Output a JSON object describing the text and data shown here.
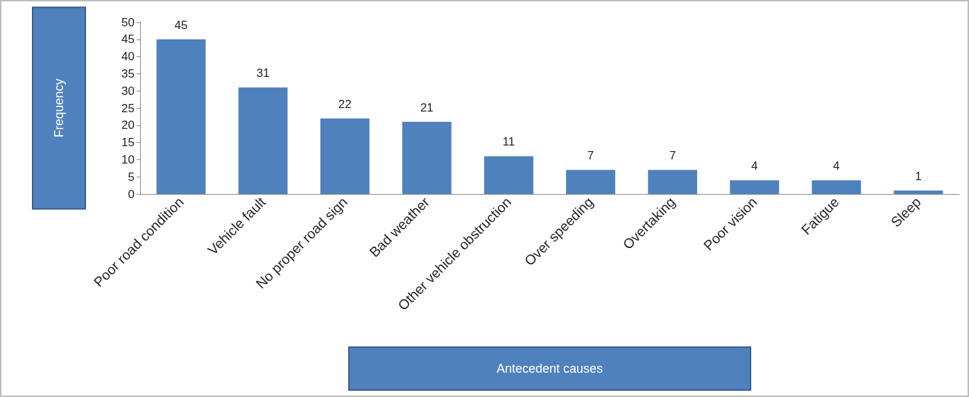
{
  "chart_data": {
    "type": "bar",
    "xlabel": "Antecedent causes",
    "ylabel": "Frequency",
    "categories": [
      "Poor road condition",
      "Vehicle fault",
      "No proper road sign",
      "Bad weather",
      "Other vehicle obstruction",
      "Over speeding",
      "Overtaking",
      "Poor vision",
      "Fatigue",
      "Sleep"
    ],
    "values": [
      45,
      31,
      22,
      21,
      11,
      7,
      7,
      4,
      4,
      1
    ],
    "color": "#4f81bd",
    "ylim": [
      0,
      50
    ],
    "yticks": [
      0,
      5,
      10,
      15,
      20,
      25,
      30,
      35,
      40,
      45,
      50
    ],
    "grid": false,
    "data_labels": true
  }
}
